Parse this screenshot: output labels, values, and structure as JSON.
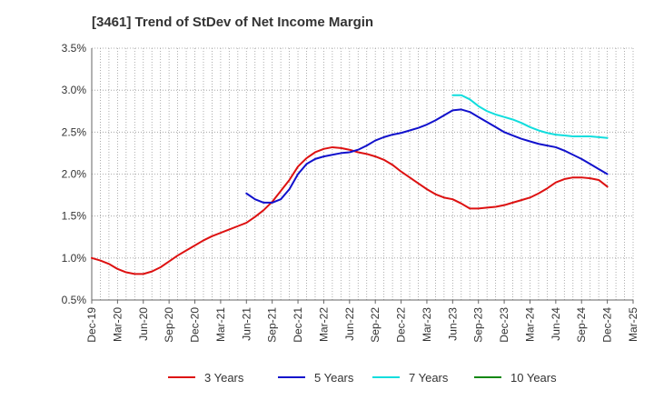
{
  "chart_data": {
    "type": "line",
    "title": "[3461]  Trend of StDev of Net Income Margin",
    "xlabel": "",
    "ylabel": "",
    "y_unit": "%",
    "ylim": [
      0.5,
      3.5
    ],
    "yticks": [
      "0.5%",
      "1.0%",
      "1.5%",
      "2.0%",
      "2.5%",
      "3.0%",
      "3.5%"
    ],
    "x_categories": [
      "Dec-19",
      "Mar-20",
      "Jun-20",
      "Sep-20",
      "Dec-20",
      "Mar-21",
      "Jun-21",
      "Sep-21",
      "Dec-21",
      "Mar-22",
      "Jun-22",
      "Sep-22",
      "Dec-22",
      "Mar-23",
      "Jun-23",
      "Sep-23",
      "Dec-23",
      "Mar-24",
      "Jun-24",
      "Sep-24",
      "Dec-24",
      "Mar-25"
    ],
    "grid": true,
    "legend_position": "bottom",
    "series": [
      {
        "name": "3 Years",
        "color": "#dd1111",
        "points": [
          [
            "Dec-19",
            1.0
          ],
          [
            "Jan-20",
            0.97
          ],
          [
            "Feb-20",
            0.93
          ],
          [
            "Mar-20",
            0.87
          ],
          [
            "Apr-20",
            0.83
          ],
          [
            "May-20",
            0.81
          ],
          [
            "Jun-20",
            0.81
          ],
          [
            "Jul-20",
            0.84
          ],
          [
            "Aug-20",
            0.89
          ],
          [
            "Sep-20",
            0.96
          ],
          [
            "Oct-20",
            1.03
          ],
          [
            "Nov-20",
            1.09
          ],
          [
            "Dec-20",
            1.15
          ],
          [
            "Jan-21",
            1.21
          ],
          [
            "Feb-21",
            1.26
          ],
          [
            "Mar-21",
            1.3
          ],
          [
            "Apr-21",
            1.34
          ],
          [
            "May-21",
            1.38
          ],
          [
            "Jun-21",
            1.42
          ],
          [
            "Jul-21",
            1.49
          ],
          [
            "Aug-21",
            1.57
          ],
          [
            "Sep-21",
            1.67
          ],
          [
            "Oct-21",
            1.8
          ],
          [
            "Nov-21",
            1.93
          ],
          [
            "Dec-21",
            2.09
          ],
          [
            "Jan-22",
            2.19
          ],
          [
            "Feb-22",
            2.26
          ],
          [
            "Mar-22",
            2.3
          ],
          [
            "Apr-22",
            2.32
          ],
          [
            "May-22",
            2.31
          ],
          [
            "Jun-22",
            2.29
          ],
          [
            "Jul-22",
            2.26
          ],
          [
            "Aug-22",
            2.24
          ],
          [
            "Sep-22",
            2.21
          ],
          [
            "Oct-22",
            2.17
          ],
          [
            "Nov-22",
            2.11
          ],
          [
            "Dec-22",
            2.03
          ],
          [
            "Jan-23",
            1.96
          ],
          [
            "Feb-23",
            1.89
          ],
          [
            "Mar-23",
            1.82
          ],
          [
            "Apr-23",
            1.76
          ],
          [
            "May-23",
            1.72
          ],
          [
            "Jun-23",
            1.7
          ],
          [
            "Jul-23",
            1.65
          ],
          [
            "Aug-23",
            1.59
          ],
          [
            "Sep-23",
            1.59
          ],
          [
            "Oct-23",
            1.6
          ],
          [
            "Nov-23",
            1.61
          ],
          [
            "Dec-23",
            1.63
          ],
          [
            "Jan-24",
            1.66
          ],
          [
            "Feb-24",
            1.69
          ],
          [
            "Mar-24",
            1.72
          ],
          [
            "Apr-24",
            1.77
          ],
          [
            "May-24",
            1.83
          ],
          [
            "Jun-24",
            1.9
          ],
          [
            "Jul-24",
            1.94
          ],
          [
            "Aug-24",
            1.96
          ],
          [
            "Sep-24",
            1.96
          ],
          [
            "Oct-24",
            1.95
          ],
          [
            "Nov-24",
            1.93
          ],
          [
            "Dec-24",
            1.85
          ]
        ]
      },
      {
        "name": "5 Years",
        "color": "#1111cc",
        "points": [
          [
            "Jun-21",
            1.77
          ],
          [
            "Jul-21",
            1.7
          ],
          [
            "Aug-21",
            1.66
          ],
          [
            "Sep-21",
            1.66
          ],
          [
            "Oct-21",
            1.7
          ],
          [
            "Nov-21",
            1.82
          ],
          [
            "Dec-21",
            2.0
          ],
          [
            "Jan-22",
            2.12
          ],
          [
            "Feb-22",
            2.18
          ],
          [
            "Mar-22",
            2.21
          ],
          [
            "Apr-22",
            2.23
          ],
          [
            "May-22",
            2.25
          ],
          [
            "Jun-22",
            2.26
          ],
          [
            "Jul-22",
            2.29
          ],
          [
            "Aug-22",
            2.34
          ],
          [
            "Sep-22",
            2.4
          ],
          [
            "Oct-22",
            2.44
          ],
          [
            "Nov-22",
            2.47
          ],
          [
            "Dec-22",
            2.49
          ],
          [
            "Jan-23",
            2.52
          ],
          [
            "Feb-23",
            2.55
          ],
          [
            "Mar-23",
            2.59
          ],
          [
            "Apr-23",
            2.64
          ],
          [
            "May-23",
            2.7
          ],
          [
            "Jun-23",
            2.76
          ],
          [
            "Jul-23",
            2.77
          ],
          [
            "Aug-23",
            2.74
          ],
          [
            "Sep-23",
            2.68
          ],
          [
            "Oct-23",
            2.62
          ],
          [
            "Nov-23",
            2.56
          ],
          [
            "Dec-23",
            2.5
          ],
          [
            "Jan-24",
            2.46
          ],
          [
            "Feb-24",
            2.42
          ],
          [
            "Mar-24",
            2.39
          ],
          [
            "Apr-24",
            2.36
          ],
          [
            "May-24",
            2.34
          ],
          [
            "Jun-24",
            2.32
          ],
          [
            "Jul-24",
            2.28
          ],
          [
            "Aug-24",
            2.23
          ],
          [
            "Sep-24",
            2.18
          ],
          [
            "Oct-24",
            2.12
          ],
          [
            "Nov-24",
            2.06
          ],
          [
            "Dec-24",
            2.0
          ]
        ]
      },
      {
        "name": "7 Years",
        "color": "#11dddd",
        "points": [
          [
            "Jun-23",
            2.94
          ],
          [
            "Jul-23",
            2.94
          ],
          [
            "Aug-23",
            2.89
          ],
          [
            "Sep-23",
            2.81
          ],
          [
            "Oct-23",
            2.75
          ],
          [
            "Nov-23",
            2.71
          ],
          [
            "Dec-23",
            2.68
          ],
          [
            "Jan-24",
            2.65
          ],
          [
            "Feb-24",
            2.61
          ],
          [
            "Mar-24",
            2.56
          ],
          [
            "Apr-24",
            2.52
          ],
          [
            "May-24",
            2.49
          ],
          [
            "Jun-24",
            2.47
          ],
          [
            "Jul-24",
            2.46
          ],
          [
            "Aug-24",
            2.45
          ],
          [
            "Sep-24",
            2.45
          ],
          [
            "Oct-24",
            2.45
          ],
          [
            "Nov-24",
            2.44
          ],
          [
            "Dec-24",
            2.43
          ]
        ]
      },
      {
        "name": "10 Years",
        "color": "#118811",
        "points": []
      }
    ]
  }
}
